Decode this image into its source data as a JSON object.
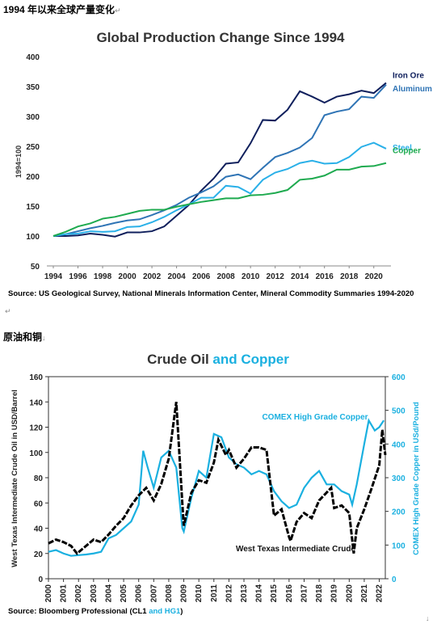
{
  "doc": {
    "heading1": "1994 年以来全球产量变化",
    "heading2": "原油和铜",
    "para_mark": "↵",
    "para_mark2": "↓",
    "source1": "Source: US Geological Survey, National Minerals Information Center, Mineral Commodity Summaries 1994-2020",
    "source2_prefix": "Source: Bloomberg Professional  (CL1 ",
    "source2_and": "and HG1",
    "source2_suffix": ")"
  },
  "colors": {
    "iron_ore": "#0f1f5c",
    "aluminum": "#2f74b5",
    "steel": "#2ab0e8",
    "copper_prod": "#1eaa4f",
    "wti": "#000000",
    "comex": "#1ab0e0"
  },
  "chart_data": [
    {
      "type": "line",
      "title": "Global Production Change Since 1994",
      "xlabel": "",
      "ylabel": "1994=100",
      "xlim": [
        1994,
        2021
      ],
      "ylim": [
        50,
        400
      ],
      "x_ticks": [
        1994,
        1996,
        1998,
        2000,
        2002,
        2004,
        2006,
        2008,
        2010,
        2012,
        2014,
        2016,
        2018,
        2020
      ],
      "y_ticks": [
        50,
        100,
        150,
        200,
        250,
        300,
        350,
        400
      ],
      "grid": false,
      "legend": "right end labels",
      "x": [
        1994,
        1995,
        1996,
        1997,
        1998,
        1999,
        2000,
        2001,
        2002,
        2003,
        2004,
        2005,
        2006,
        2007,
        2008,
        2009,
        2010,
        2011,
        2012,
        2013,
        2014,
        2015,
        2016,
        2017,
        2018,
        2019,
        2020,
        2021
      ],
      "series": [
        {
          "name": "Iron Ore",
          "color_key": "iron_ore",
          "values": [
            100,
            100,
            101,
            104,
            102,
            99,
            106,
            106,
            108,
            116,
            134,
            152,
            176,
            196,
            221,
            223,
            255,
            294,
            293,
            311,
            342,
            333,
            323,
            333,
            337,
            343,
            339,
            356
          ]
        },
        {
          "name": "Aluminum",
          "color_key": "aluminum",
          "values": [
            100,
            103,
            108,
            113,
            117,
            122,
            126,
            128,
            135,
            143,
            152,
            164,
            173,
            183,
            199,
            203,
            195,
            214,
            232,
            239,
            248,
            264,
            302,
            308,
            312,
            333,
            331,
            353
          ]
        },
        {
          "name": "Steel",
          "color_key": "steel",
          "values": [
            100,
            103,
            104,
            108,
            107,
            108,
            115,
            116,
            123,
            132,
            143,
            153,
            164,
            164,
            184,
            182,
            171,
            194,
            206,
            212,
            222,
            226,
            221,
            222,
            232,
            249,
            256,
            246
          ]
        },
        {
          "name": "Copper",
          "color_key": "copper_prod",
          "values": [
            100,
            107,
            116,
            121,
            129,
            132,
            137,
            142,
            144,
            144,
            149,
            153,
            157,
            160,
            163,
            163,
            168,
            169,
            172,
            177,
            194,
            196,
            201,
            211,
            211,
            216,
            217,
            222
          ]
        }
      ]
    },
    {
      "type": "line",
      "title": "Crude Oil and Copper",
      "title_part1": "Crude Oil ",
      "title_part2": "and Copper",
      "xlabel": "",
      "ylabel_left": "West Texas Intermediate Crude Oil in USD/Barrel",
      "ylabel_right": "COMEX High Grade Copper in USd/Pound",
      "xlim": [
        2000,
        2022.4
      ],
      "ylim_left": [
        0,
        160
      ],
      "ylim_right": [
        0,
        600
      ],
      "x_ticks": [
        2000,
        2001,
        2002,
        2003,
        2004,
        2005,
        2006,
        2007,
        2008,
        2009,
        2010,
        2011,
        2012,
        2013,
        2014,
        2015,
        2016,
        2017,
        2018,
        2019,
        2020,
        2021,
        2022
      ],
      "y_ticks_left": [
        0,
        20,
        40,
        60,
        80,
        100,
        120,
        140,
        160
      ],
      "y_ticks_right": [
        0,
        100,
        200,
        300,
        400,
        500,
        600
      ],
      "grid": false,
      "series": [
        {
          "name": "West Texas Intermediate Crude",
          "axis": "left",
          "color_key": "wti",
          "style": "dashed",
          "x": [
            2000,
            2000.5,
            2001,
            2001.5,
            2001.9,
            2002.5,
            2003,
            2003.5,
            2004,
            2004.5,
            2005,
            2005.5,
            2006,
            2006.5,
            2007,
            2007.5,
            2008,
            2008.5,
            2008.9,
            2009,
            2009.5,
            2010,
            2010.5,
            2011,
            2011.3,
            2011.8,
            2012,
            2012.5,
            2013,
            2013.5,
            2014,
            2014.5,
            2015,
            2015.5,
            2016,
            2016.1,
            2016.5,
            2017,
            2017.5,
            2018,
            2018.8,
            2019,
            2019.5,
            2020,
            2020.3,
            2020.5,
            2021,
            2021.5,
            2022,
            2022.2,
            2022.4
          ],
          "values": [
            28,
            31,
            29,
            26,
            20,
            26,
            31,
            29,
            35,
            42,
            48,
            58,
            66,
            72,
            62,
            75,
            95,
            140,
            60,
            42,
            68,
            78,
            76,
            92,
            110,
            98,
            102,
            88,
            95,
            104,
            104,
            102,
            50,
            55,
            33,
            30,
            45,
            52,
            48,
            62,
            72,
            56,
            58,
            52,
            20,
            40,
            55,
            72,
            90,
            118,
            98
          ]
        },
        {
          "name": "COMEX High Grade Copper",
          "axis": "right",
          "color_key": "comex",
          "style": "solid",
          "x": [
            2000,
            2000.5,
            2001,
            2001.5,
            2002,
            2002.5,
            2003,
            2003.5,
            2004,
            2004.5,
            2005,
            2005.5,
            2006,
            2006.3,
            2006.6,
            2007,
            2007.5,
            2008,
            2008.5,
            2008.9,
            2009,
            2009.5,
            2010,
            2010.5,
            2011,
            2011.5,
            2012,
            2012.5,
            2013,
            2013.5,
            2014,
            2014.5,
            2015,
            2015.5,
            2016,
            2016.5,
            2017,
            2017.5,
            2018,
            2018.5,
            2019,
            2019.5,
            2020,
            2020.2,
            2020.5,
            2021,
            2021.3,
            2021.7,
            2022,
            2022.3
          ],
          "values": [
            80,
            85,
            75,
            68,
            70,
            72,
            75,
            80,
            120,
            130,
            150,
            170,
            220,
            380,
            330,
            270,
            360,
            380,
            330,
            150,
            140,
            240,
            320,
            300,
            430,
            420,
            360,
            340,
            330,
            310,
            320,
            310,
            260,
            230,
            210,
            220,
            270,
            300,
            320,
            280,
            280,
            260,
            250,
            220,
            280,
            400,
            470,
            440,
            450,
            470
          ]
        }
      ],
      "annotations": [
        "COMEX High Grade Copper",
        "West Texas Intermediate Crude"
      ]
    }
  ]
}
